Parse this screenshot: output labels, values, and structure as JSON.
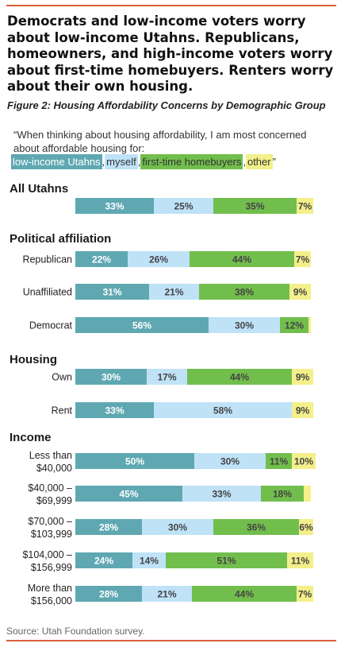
{
  "headline": "Democrats and low-income voters worry about low-income Utahns. Republicans, homeowners, and high-income voters worry about first-time homebuyers. Renters worry about their own housing.",
  "figure_label": "Figure 2: Housing Affordability Concerns by Demographic Group",
  "question": "“When thinking about housing affordability, I am most concerned about affordable housing for:",
  "legend": [
    {
      "label": "low-income Utahns",
      "color": "#5fa8b2",
      "text_color": "#ffffff",
      "suffix": ","
    },
    {
      "label": "myself",
      "color": "#bfe2f7",
      "text_color": "#333333",
      "suffix": ","
    },
    {
      "label": "first-time homebuyers",
      "color": "#72be4d",
      "text_color": "#333333",
      "suffix": ","
    },
    {
      "label": "other",
      "color": "#f3ef8a",
      "text_color": "#333333",
      "suffix": "”"
    }
  ],
  "source": "Source: Utah Foundation survey.",
  "chart_data": {
    "type": "bar",
    "orientation": "horizontal",
    "stacked": true,
    "series_names": [
      "low-income Utahns",
      "myself",
      "first-time homebuyers",
      "other"
    ],
    "series_colors": [
      "#5fa8b2",
      "#bfe2f7",
      "#72be4d",
      "#f3ef8a"
    ],
    "sections": [
      {
        "title": "All Utahns",
        "rows": [
          {
            "label": [
              ""
            ],
            "values": [
              33,
              25,
              35,
              7
            ],
            "labels": [
              "33%",
              "25%",
              "35%",
              "7%"
            ]
          }
        ]
      },
      {
        "title": "Political affiliation",
        "rows": [
          {
            "label": [
              "Republican"
            ],
            "values": [
              22,
              26,
              44,
              7
            ],
            "labels": [
              "22%",
              "26%",
              "44%",
              "7%"
            ]
          },
          {
            "label": [
              "Unaffiliated"
            ],
            "values": [
              31,
              21,
              38,
              9
            ],
            "labels": [
              "31%",
              "21%",
              "38%",
              "9%"
            ]
          },
          {
            "label": [
              "Democrat"
            ],
            "values": [
              56,
              30,
              12,
              1
            ],
            "labels": [
              "56%",
              "30%",
              "12%",
              ""
            ]
          }
        ]
      },
      {
        "title": "Housing",
        "rows": [
          {
            "label": [
              "Own"
            ],
            "values": [
              30,
              17,
              44,
              9
            ],
            "labels": [
              "30%",
              "17%",
              "44%",
              "9%"
            ]
          },
          {
            "label": [
              "Rent"
            ],
            "values": [
              33,
              58,
              0,
              9
            ],
            "labels": [
              "33%",
              "58%",
              "",
              "9%"
            ]
          }
        ]
      },
      {
        "title": "Income",
        "rows": [
          {
            "label": [
              "Less than",
              "$40,000"
            ],
            "values": [
              50,
              30,
              11,
              10
            ],
            "labels": [
              "50%",
              "30%",
              "11%",
              "10%"
            ]
          },
          {
            "label": [
              "$40,000 –",
              "$69,999"
            ],
            "values": [
              45,
              33,
              18,
              3
            ],
            "labels": [
              "45%",
              "33%",
              "18%",
              ""
            ]
          },
          {
            "label": [
              "$70,000 –",
              "$103,999"
            ],
            "values": [
              28,
              30,
              36,
              6
            ],
            "labels": [
              "28%",
              "30%",
              "36%",
              "6%"
            ]
          },
          {
            "label": [
              "$104,000 –",
              "$156,999"
            ],
            "values": [
              24,
              14,
              51,
              11
            ],
            "labels": [
              "24%",
              "14%",
              "51%",
              "11%"
            ]
          },
          {
            "label": [
              "More than",
              "$156,000"
            ],
            "values": [
              28,
              21,
              44,
              7
            ],
            "labels": [
              "28%",
              "21%",
              "44%",
              "7%"
            ]
          }
        ]
      }
    ],
    "xlim": [
      0,
      100
    ]
  }
}
